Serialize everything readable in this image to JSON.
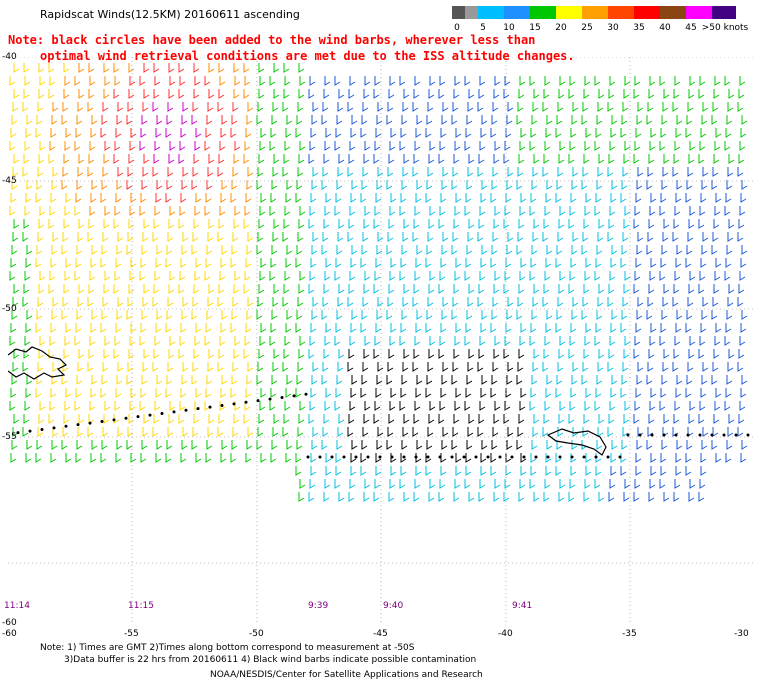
{
  "title": "Rapidscat Winds(12.5KM) 20160611 ascending",
  "note_line1": "Note: black circles have been added to the wind barbs, wherever less than",
  "note_line2": "optimal wind retrieval conditions are met due to the ISS altitude changes.",
  "legend": {
    "labels": [
      "0",
      "5",
      "10",
      "15",
      "20",
      "25",
      "30",
      "35",
      "40",
      "45",
      ">50 knots"
    ],
    "colors": [
      "#555555",
      "#999999",
      "#00bfff",
      "#1e90ff",
      "#00c800",
      "#ffff00",
      "#ffa000",
      "#ff4500",
      "#ff0000",
      "#8b4513",
      "#ff00ff",
      "#8000ff",
      "#400080"
    ]
  },
  "axes": {
    "longitude_labels": [
      "-60",
      "-55",
      "-50",
      "-45",
      "-40",
      "-35",
      "-30"
    ],
    "latitude_labels": [
      "-40",
      "-45",
      "-50",
      "-55",
      "-60"
    ]
  },
  "pass_times": [
    "11:14",
    "11:15",
    "9:39",
    "9:40",
    "9:41"
  ],
  "footer": {
    "line1": "Note: 1) Times are GMT 2)Times along bottom correspond to measurement at -50S",
    "line2": "3)Data buffer is 22 hrs from 20160611 4) Black wind barbs indicate possible contamination",
    "line3": "NOAA/NESDIS/Center for Satellite Applications and Research"
  }
}
